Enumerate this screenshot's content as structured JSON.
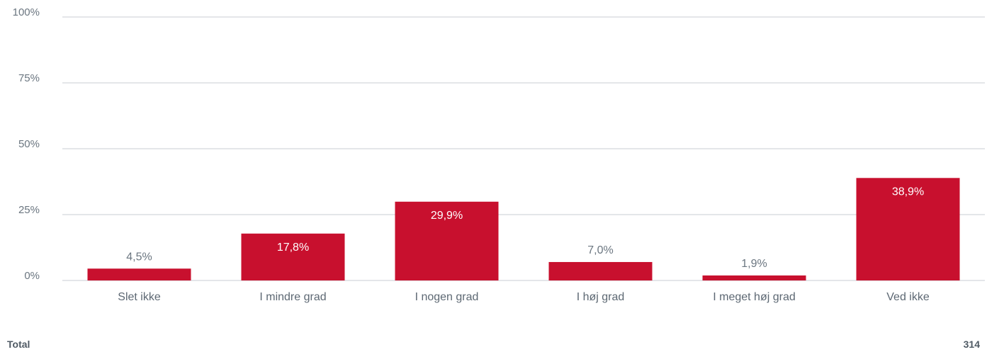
{
  "colors": {
    "bar": "#c8102e",
    "label_inside": "#ffffff",
    "label_outside": "#6b7680",
    "grid": "#c9ced3",
    "text": "#5d6873"
  },
  "chart_data": {
    "type": "bar",
    "categories": [
      "Slet ikke",
      "I mindre grad",
      "I nogen grad",
      "I høj grad",
      "I meget høj grad",
      "Ved ikke"
    ],
    "values": [
      4.5,
      17.8,
      29.9,
      7.0,
      1.9,
      38.9
    ],
    "value_labels": [
      "4,5%",
      "17,8%",
      "29,9%",
      "7,0%",
      "1,9%",
      "38,9%"
    ],
    "ylim": [
      0,
      100
    ],
    "yticks": [
      0,
      25,
      50,
      75,
      100
    ],
    "ytick_labels": [
      "0%",
      "25%",
      "50%",
      "75%",
      "100%"
    ],
    "grid": true,
    "legend": "none"
  },
  "footer": {
    "total_label": "Total",
    "total_value": "314"
  }
}
